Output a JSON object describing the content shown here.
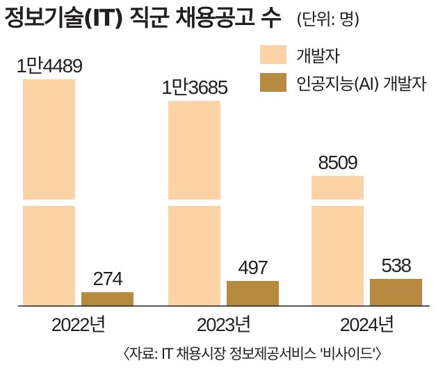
{
  "title": "정보기술(IT) 직군 채용공고 수",
  "unit_note": "(단위: 명)",
  "source_note": "〈자료: IT 채용시장 정보제공서비스 '비사이드'〉",
  "colors": {
    "developer": "#fcd3a4",
    "ai_developer": "#b68a3f",
    "text": "#231f20"
  },
  "chart_data": {
    "type": "bar",
    "title": "정보기술(IT) 직군 채용공고 수",
    "unit": "(단위: 명)",
    "categories": [
      "2022년",
      "2023년",
      "2024년"
    ],
    "series": [
      {
        "name": "개발자",
        "values": [
          14489,
          13685,
          8509
        ],
        "labels": [
          "1만4489",
          "1만3685",
          "8509"
        ],
        "color": "#fcd3a4"
      },
      {
        "name": "인공지능(AI) 개발자",
        "values": [
          274,
          497,
          538
        ],
        "labels": [
          "274",
          "497",
          "538"
        ],
        "color": "#b68a3f"
      }
    ],
    "axis_break": true,
    "grid": false,
    "legend_position": "top-right"
  }
}
